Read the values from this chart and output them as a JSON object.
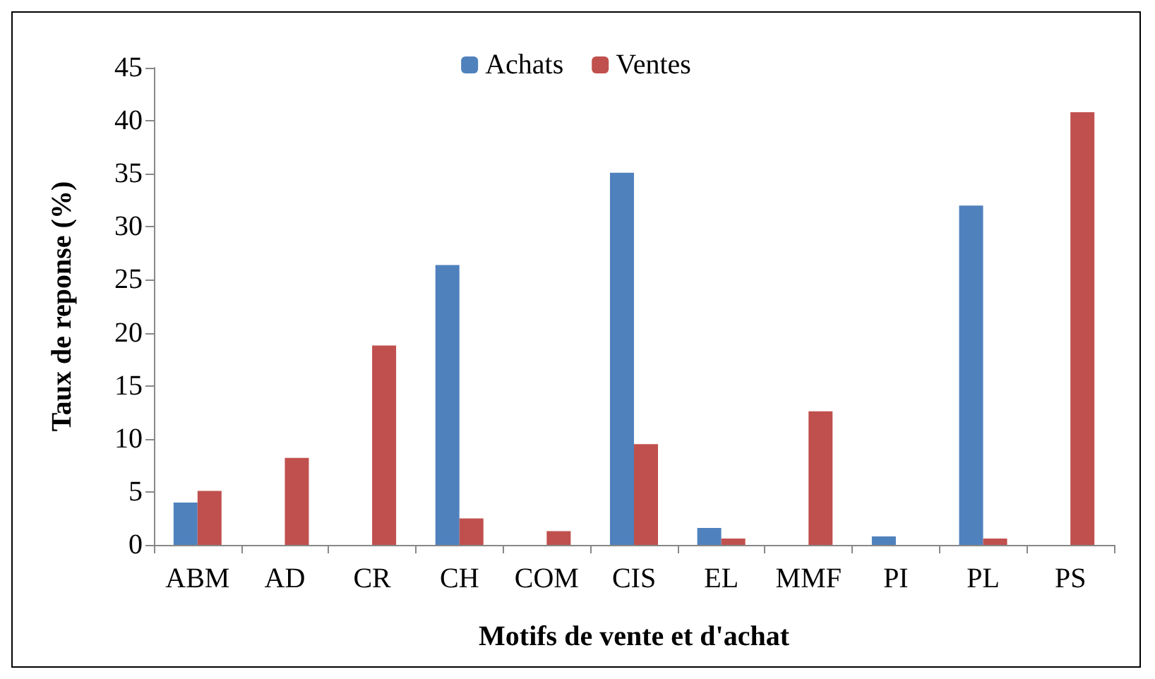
{
  "chart_data": {
    "type": "bar",
    "xlabel": "Motifs de vente et d'achat",
    "ylabel": "Taux de reponse (%)",
    "categories": [
      "ABM",
      "AD",
      "CR",
      "CH",
      "COM",
      "CIS",
      "EL",
      "MMF",
      "PI",
      "PL",
      "PS"
    ],
    "series": [
      {
        "name": "Achats",
        "color": "#4f81bd",
        "values": [
          4.0,
          0,
          0,
          26.4,
          0,
          35.1,
          1.6,
          0,
          0.8,
          32.0,
          0
        ]
      },
      {
        "name": "Ventes",
        "color": "#c0504d",
        "values": [
          5.1,
          8.2,
          18.8,
          2.5,
          1.3,
          9.5,
          0.6,
          12.6,
          0,
          0.6,
          40.8
        ]
      }
    ],
    "ylim": [
      0,
      45
    ],
    "yticks": [
      0,
      5,
      10,
      15,
      20,
      25,
      30,
      35,
      40,
      45
    ],
    "grid": false,
    "legend": "top"
  }
}
